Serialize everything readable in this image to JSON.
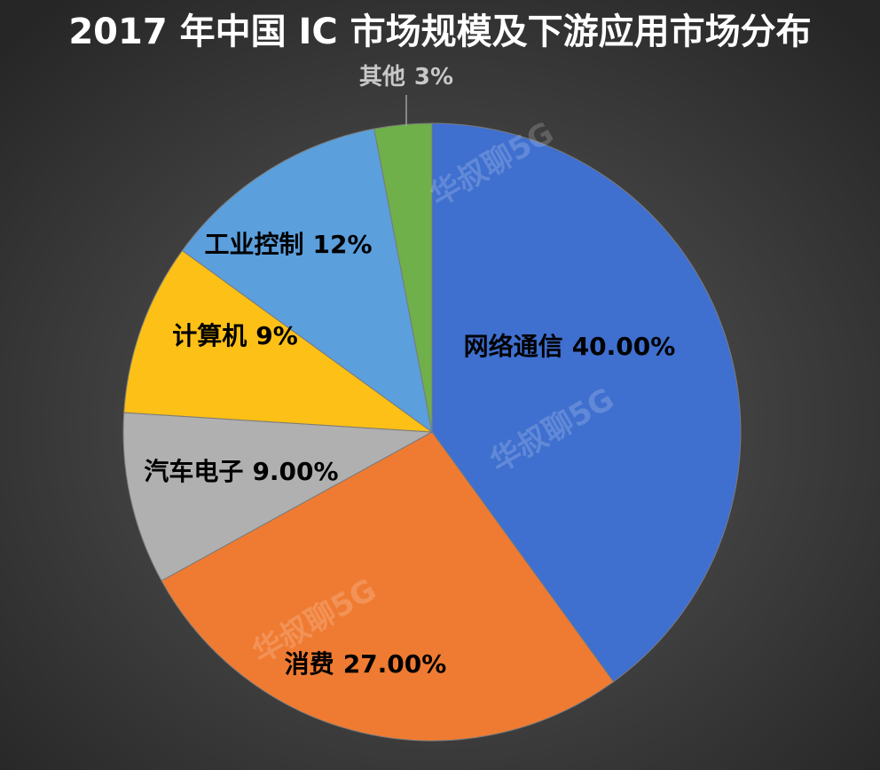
{
  "chart_data": {
    "type": "pie",
    "title": "2017 年中国 IC 市场规模及下游应用市场分布",
    "categories": [
      "网络通信",
      "消费",
      "汽车电子",
      "计算机",
      "工业控制",
      "其他"
    ],
    "values": [
      40,
      27,
      9,
      9,
      12,
      3
    ],
    "value_labels": [
      "40.00%",
      "27.00%",
      "9.00%",
      "9%",
      "12%",
      "3%"
    ],
    "colors": [
      "#3f6fcf",
      "#ef7b32",
      "#b0b0b0",
      "#fcc016",
      "#5b9fdc",
      "#6fb04a"
    ],
    "watermark": "华叔聊5G"
  }
}
